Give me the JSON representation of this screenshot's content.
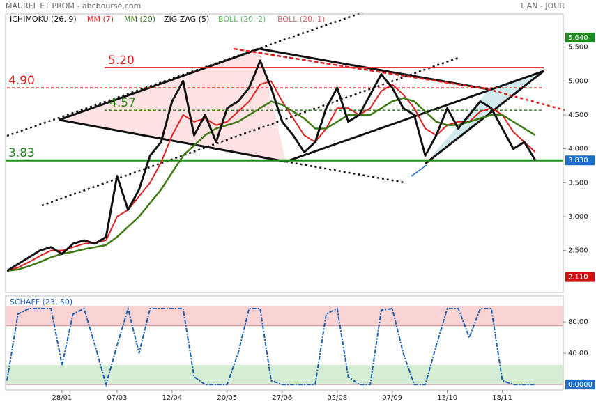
{
  "chart_data": [
    {
      "type": "line",
      "title": "MAUREL ET PROM - abcbourse.com",
      "subtitle": "1 AN - JOUR",
      "categories": [
        null,
        null,
        null,
        null,
        null,
        "28/01",
        null,
        null,
        null,
        null,
        "07/03",
        null,
        null,
        null,
        null,
        "12/04",
        null,
        null,
        null,
        null,
        "20/05",
        null,
        null,
        null,
        null,
        "27/06",
        null,
        null,
        null,
        null,
        "02/08",
        null,
        null,
        null,
        null,
        "07/09",
        null,
        null,
        null,
        null,
        "13/10",
        null,
        null,
        null,
        null,
        "18/11",
        null,
        null,
        null
      ],
      "series": [
        {
          "name": "MM (7)",
          "color": "#e02020",
          "values": [
            2.2,
            2.25,
            2.33,
            2.42,
            2.5,
            2.5,
            2.55,
            2.6,
            2.62,
            2.65,
            3.0,
            3.1,
            3.3,
            3.5,
            3.8,
            4.2,
            4.5,
            4.4,
            4.45,
            4.35,
            4.4,
            4.55,
            4.7,
            4.95,
            5.0,
            4.7,
            4.45,
            4.2,
            4.1,
            4.3,
            4.6,
            4.6,
            4.5,
            4.6,
            4.85,
            4.95,
            4.8,
            4.6,
            4.3,
            4.2,
            4.35,
            4.4,
            4.4,
            4.55,
            4.6,
            4.5,
            4.25,
            4.1,
            3.95
          ]
        },
        {
          "name": "MM (20)",
          "color": "#3d7a12",
          "values": [
            2.2,
            2.22,
            2.27,
            2.33,
            2.4,
            2.45,
            2.48,
            2.52,
            2.55,
            2.58,
            2.7,
            2.85,
            3.0,
            3.2,
            3.4,
            3.65,
            3.9,
            4.05,
            4.2,
            4.3,
            4.35,
            4.4,
            4.5,
            4.6,
            4.7,
            4.65,
            4.55,
            4.45,
            4.3,
            4.3,
            4.4,
            4.5,
            4.5,
            4.5,
            4.6,
            4.7,
            4.75,
            4.7,
            4.55,
            4.4,
            4.35,
            4.35,
            4.4,
            4.45,
            4.5,
            4.5,
            4.4,
            4.3,
            4.2
          ]
        },
        {
          "name": "ZIG ZAG (5)",
          "color": "#111111",
          "values": [
            2.2,
            2.3,
            2.4,
            2.5,
            2.55,
            2.45,
            2.6,
            2.65,
            2.6,
            2.7,
            3.6,
            3.1,
            3.4,
            3.9,
            4.1,
            4.7,
            5.0,
            4.2,
            4.5,
            4.1,
            4.6,
            4.7,
            4.9,
            5.3,
            4.9,
            4.4,
            4.2,
            3.95,
            4.1,
            4.6,
            4.9,
            4.4,
            4.5,
            4.8,
            5.1,
            4.9,
            4.6,
            4.5,
            3.9,
            4.2,
            4.6,
            4.3,
            4.5,
            4.7,
            4.6,
            4.3,
            4.0,
            4.1,
            3.83
          ]
        }
      ],
      "indicators": [
        {
          "name": "ICHIMOKU (26, 9)",
          "color": "#111111"
        },
        {
          "name": "BOLL (20, 2)",
          "color": "#5cb85c"
        },
        {
          "name": "BOLL (20, 1)",
          "color": "#e06666"
        }
      ],
      "levels": [
        {
          "value": 5.2,
          "label": "5.20",
          "color": "#e02020",
          "style": "solid"
        },
        {
          "value": 4.9,
          "label": "4.90",
          "color": "#e02020",
          "style": "dashed"
        },
        {
          "value": 4.57,
          "label": "4.57",
          "color": "#2e8b1e",
          "style": "dashed"
        },
        {
          "value": 3.83,
          "label": "3.83",
          "color": "#1f8a1f",
          "style": "solid"
        }
      ],
      "price_markers": [
        {
          "value": 5.64,
          "label": "5.640",
          "color": "#1f8a1f"
        },
        {
          "value": 3.83,
          "label": "3.830",
          "color": "#1a6ec8"
        },
        {
          "value": 2.11,
          "label": "2.110",
          "color": "#d01010"
        }
      ],
      "ylim": [
        1.88,
        5.99
      ],
      "yticks": [
        {
          "value": 2.5,
          "label": "2.500"
        },
        {
          "value": 3,
          "label": "3.000"
        },
        {
          "value": 3.5,
          "label": "3.500"
        },
        {
          "value": 4,
          "label": "4.000"
        },
        {
          "value": 4.5,
          "label": "4.500"
        },
        {
          "value": 5,
          "label": "5.000"
        },
        {
          "value": 5.5,
          "label": "5.500"
        }
      ]
    },
    {
      "type": "line",
      "title": "SCHAFF (23, 50)",
      "color": "#1a5fb4",
      "values": [
        5,
        90,
        97,
        97,
        97,
        25,
        90,
        97,
        50,
        0,
        50,
        97,
        40,
        97,
        97,
        97,
        97,
        10,
        0,
        0,
        0,
        40,
        97,
        97,
        5,
        0,
        0,
        0,
        0,
        90,
        97,
        10,
        0,
        0,
        95,
        97,
        40,
        0,
        0,
        50,
        97,
        97,
        60,
        97,
        97,
        5,
        0,
        0,
        0
      ],
      "last_marker": {
        "value": 0,
        "label": "0.0000",
        "color": "#1a6ec8"
      },
      "zones": [
        {
          "from": 75,
          "to": 100,
          "color": "#f9d3d3"
        },
        {
          "from": 0,
          "to": 25,
          "color": "#d5ecd5"
        }
      ],
      "ylim": [
        -7,
        113
      ],
      "yticks": [
        {
          "value": 40,
          "label": "40.00"
        },
        {
          "value": 80,
          "label": "80.00"
        }
      ]
    }
  ]
}
